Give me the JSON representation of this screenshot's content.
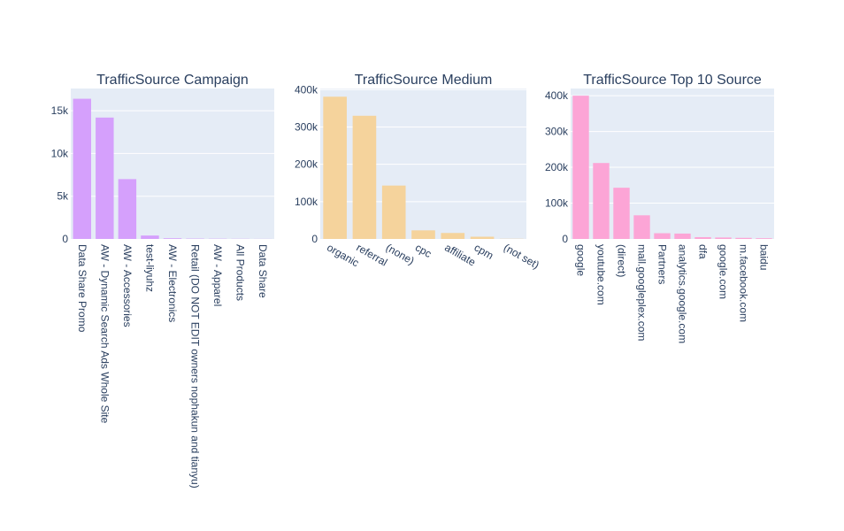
{
  "chart_data": [
    {
      "type": "bar",
      "title": "TrafficSource Campaign",
      "color": "#d5a0fc",
      "categories": [
        "Data Share Promo",
        "AW - Dynamic Search Ads Whole Site",
        "AW - Accessories",
        "test-liyuhz",
        "AW - Electronics",
        "Retail (DO NOT EDIT owners nophakun and tianyu)",
        "AW - Apparel",
        "All Products",
        "Data Share"
      ],
      "values": [
        16400,
        14200,
        7000,
        400,
        80,
        40,
        30,
        20,
        10
      ],
      "ylim": [
        0,
        17600
      ],
      "yticks": [
        0,
        5000,
        10000,
        15000
      ],
      "ytick_labels": [
        "0",
        "5k",
        "10k",
        "15k"
      ],
      "xtick_angle": 90
    },
    {
      "type": "bar",
      "title": "TrafficSource Medium",
      "color": "#f5d39c",
      "categories": [
        "organic",
        "referral",
        "(none)",
        "cpc",
        "affiliate",
        "cpm",
        "(not set)"
      ],
      "values": [
        381000,
        330000,
        143000,
        23000,
        16000,
        6000,
        500
      ],
      "ylim": [
        0,
        403000
      ],
      "yticks": [
        0,
        100000,
        200000,
        300000,
        400000
      ],
      "ytick_labels": [
        "0",
        "100k",
        "200k",
        "300k",
        "400k"
      ],
      "xtick_angle": 30
    },
    {
      "type": "bar",
      "title": "TrafficSource Top 10 Source",
      "color": "#fca5d6",
      "categories": [
        "google",
        "youtube.com",
        "(direct)",
        "mall.googleplex.com",
        "Partners",
        "analytics.google.com",
        "dfa",
        "google.com",
        "m.facebook.com",
        "baidu"
      ],
      "values": [
        400000,
        212000,
        143000,
        66000,
        16000,
        15000,
        5000,
        4000,
        3000,
        2000
      ],
      "ylim": [
        0,
        420000
      ],
      "yticks": [
        0,
        100000,
        200000,
        300000,
        400000
      ],
      "ytick_labels": [
        "0",
        "100k",
        "200k",
        "300k",
        "400k"
      ],
      "xtick_angle": 90
    }
  ]
}
